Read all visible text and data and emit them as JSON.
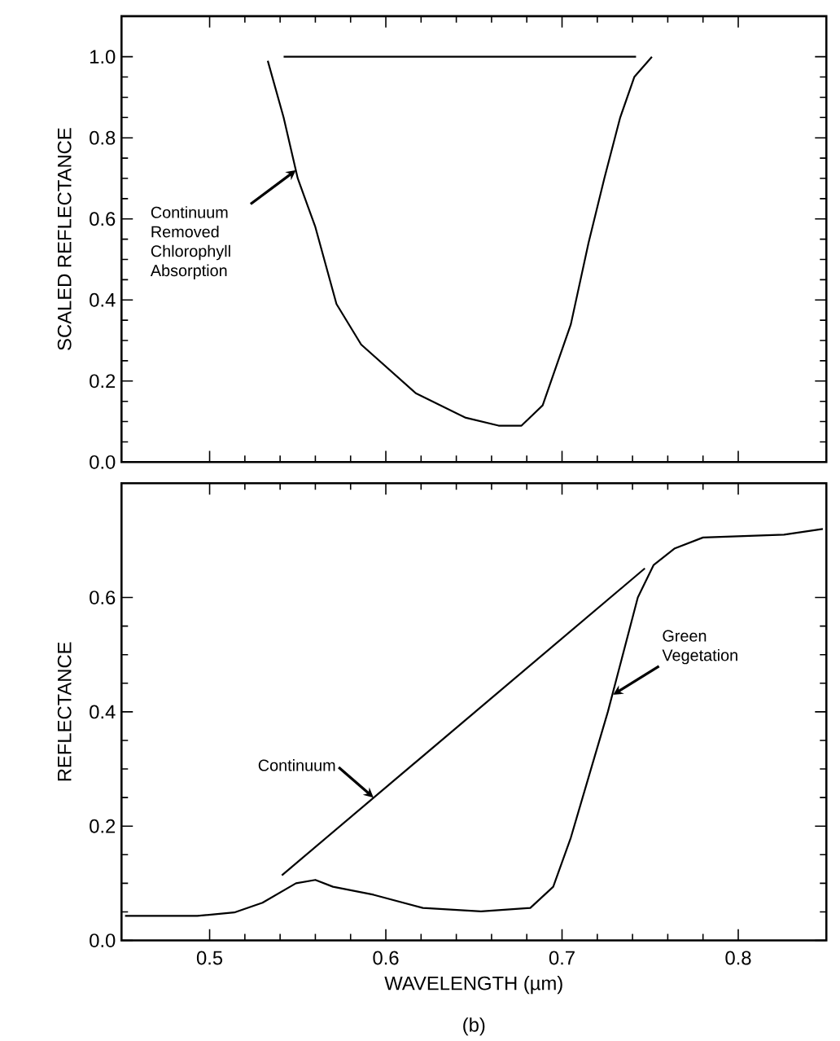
{
  "chart_data": [
    {
      "type": "line",
      "ylabel": "SCALED REFLECTANCE",
      "xlim": [
        0.45,
        0.85
      ],
      "xticks": [
        0.5,
        0.6,
        0.7,
        0.8
      ],
      "ylim": [
        0,
        1.1
      ],
      "yticks": [
        {
          "value": 0,
          "label": "0.0"
        },
        {
          "value": 0.2,
          "label": "0.2"
        },
        {
          "value": 0.4,
          "label": "0.4"
        },
        {
          "value": 0.6,
          "label": "0.6"
        },
        {
          "value": 0.8,
          "label": "0.8"
        },
        {
          "value": 1,
          "label": "1.0"
        }
      ],
      "tick_labels": "y",
      "series": [
        {
          "color": "#000000",
          "x": [
            0.542,
            0.742
          ],
          "values": [
            1.0,
            1.0
          ]
        },
        {
          "color": "#000000",
          "x": [
            0.533,
            0.542,
            0.55,
            0.56,
            0.572,
            0.586,
            0.617,
            0.645,
            0.664,
            0.677,
            0.689,
            0.705,
            0.715,
            0.724,
            0.733,
            0.741,
            0.751
          ],
          "values": [
            0.99,
            0.85,
            0.7,
            0.58,
            0.39,
            0.29,
            0.17,
            0.11,
            0.09,
            0.09,
            0.14,
            0.34,
            0.54,
            0.7,
            0.85,
            0.95,
            1.0
          ]
        }
      ],
      "annotations": [
        {
          "text": "Continuum Removed Chlorophyll Absorption",
          "x": 0.549,
          "y": 0.72
        }
      ]
    },
    {
      "type": "line",
      "xlabel": "WAVELENGTH (µm)",
      "ylabel": "REFLECTANCE",
      "xlim": [
        0.45,
        0.85
      ],
      "xticks": [
        {
          "value": 0.5,
          "label": "0.5"
        },
        {
          "value": 0.6,
          "label": "0.6"
        },
        {
          "value": 0.7,
          "label": "0.7"
        },
        {
          "value": 0.8,
          "label": "0.8"
        }
      ],
      "ylim": [
        0,
        0.8
      ],
      "yticks": [
        {
          "value": 0,
          "label": "0.0"
        },
        {
          "value": 0.2,
          "label": "0.2"
        },
        {
          "value": 0.4,
          "label": "0.4"
        },
        {
          "value": 0.6,
          "label": "0.6"
        }
      ],
      "series": [
        {
          "color": "#000000",
          "x": [
            0.452,
            0.493,
            0.514,
            0.53,
            0.549,
            0.56,
            0.57,
            0.593,
            0.621,
            0.654,
            0.682,
            0.695,
            0.705,
            0.717,
            0.726,
            0.743,
            0.752,
            0.764,
            0.78,
            0.826,
            0.848
          ],
          "values": [
            0.043,
            0.043,
            0.049,
            0.066,
            0.1,
            0.106,
            0.094,
            0.08,
            0.057,
            0.051,
            0.057,
            0.094,
            0.18,
            0.306,
            0.4,
            0.6,
            0.657,
            0.686,
            0.705,
            0.71,
            0.72
          ]
        },
        {
          "color": "#000000",
          "x": [
            0.541,
            0.747
          ],
          "values": [
            0.114,
            0.651
          ]
        }
      ],
      "annotations": [
        {
          "text": "Continuum",
          "x": 0.593,
          "y": 0.25
        },
        {
          "text": "Green Vegetation",
          "x": 0.729,
          "y": 0.43
        },
        "(b)"
      ]
    }
  ]
}
